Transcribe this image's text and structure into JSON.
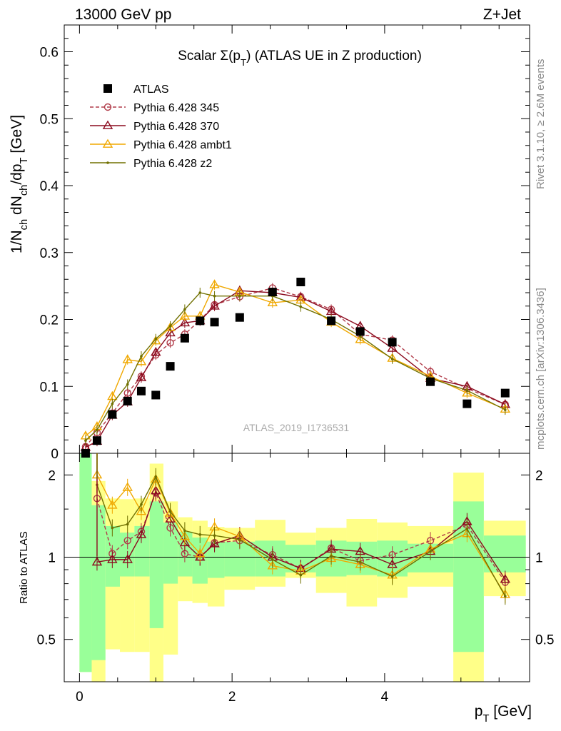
{
  "header": {
    "left": "13000 GeV pp",
    "right": "Z+Jet"
  },
  "side_labels": {
    "rivet": "Rivet 3.1.10, ≥ 2.6M events",
    "mcplots": "mcplots.cern.ch [arXiv:1306.3436]"
  },
  "chart_data": [
    {
      "type": "line",
      "title": "Scalar Σ(p_T) (ATLAS UE in Z production)",
      "xlabel": "p_T [GeV]",
      "ylabel": "1/N_ch dN_ch/dp_T [GeV]",
      "watermark": "ATLAS_2019_I1736531",
      "xlim": [
        -0.2,
        5.9
      ],
      "ylim": [
        0,
        0.64
      ],
      "yticks": [
        0,
        0.1,
        0.2,
        0.3,
        0.4,
        0.5,
        0.6
      ],
      "ytick_labels": [
        "0",
        "0.1",
        "0.2",
        "0.3",
        "0.4",
        "0.5",
        "0.6"
      ],
      "grid": false,
      "legend": "top-left",
      "x": [
        0.08,
        0.23,
        0.43,
        0.63,
        0.81,
        1.0,
        1.19,
        1.38,
        1.58,
        1.77,
        2.1,
        2.53,
        2.9,
        3.3,
        3.68,
        4.1,
        4.6,
        5.08,
        5.58
      ],
      "series": [
        {
          "name": "ATLAS",
          "color": "#000000",
          "marker": "filled-square",
          "values": [
            0.0,
            0.019,
            0.058,
            0.078,
            0.093,
            0.087,
            0.13,
            0.172,
            0.198,
            0.196,
            0.203,
            0.241,
            0.256,
            0.198,
            0.182,
            0.166,
            0.107,
            0.074,
            0.09
          ]
        },
        {
          "name": "Pythia 6.428 345",
          "color": "#b03a48",
          "marker": "open-circle",
          "dashed": true,
          "values": [
            0.01,
            0.031,
            0.06,
            0.09,
            0.115,
            0.147,
            0.165,
            0.178,
            0.199,
            0.222,
            0.234,
            0.247,
            0.234,
            0.215,
            0.178,
            0.169,
            0.122,
            0.097,
            0.073
          ]
        },
        {
          "name": "Pythia 6.428 370",
          "color": "#8b0a1e",
          "marker": "open-triangle",
          "values": [
            0.009,
            0.018,
            0.057,
            0.077,
            0.113,
            0.151,
            0.18,
            0.195,
            0.198,
            0.22,
            0.243,
            0.24,
            0.233,
            0.212,
            0.19,
            0.157,
            0.112,
            0.1,
            0.073
          ]
        },
        {
          "name": "Pythia 6.428 ambt1",
          "color": "#f0a800",
          "marker": "open-triangle",
          "values": [
            0.026,
            0.04,
            0.085,
            0.14,
            0.137,
            0.168,
            0.188,
            0.205,
            0.205,
            0.252,
            0.241,
            0.225,
            0.229,
            0.196,
            0.17,
            0.142,
            0.115,
            0.09,
            0.066
          ]
        },
        {
          "name": "Pythia 6.428 z2",
          "color": "#707000",
          "marker": "small-dot",
          "values": [
            0.019,
            0.035,
            0.074,
            0.103,
            0.145,
            0.171,
            0.19,
            0.215,
            0.24,
            0.235,
            0.235,
            0.235,
            0.219,
            0.2,
            0.175,
            0.141,
            0.112,
            0.094,
            0.065
          ]
        }
      ]
    },
    {
      "type": "line",
      "xlabel": "p_T [GeV]",
      "ylabel": "Ratio to ATLAS",
      "log_y": true,
      "ylim": [
        0.35,
        2.4
      ],
      "yticks": [
        0.5,
        1,
        2
      ],
      "ytick_labels": [
        "0.5",
        "1",
        "2"
      ],
      "xticks": [
        0,
        2,
        4
      ],
      "xtick_labels": [
        "0",
        "2",
        "4"
      ],
      "reference_line": 1,
      "uncertainty_bands": {
        "bin_edges": [
          0.0,
          0.16,
          0.34,
          0.53,
          0.72,
          0.92,
          1.1,
          1.29,
          1.48,
          1.68,
          1.9,
          2.3,
          2.7,
          3.1,
          3.5,
          3.9,
          4.3,
          4.9,
          5.3,
          5.85
        ],
        "inner_lo": [
          0.38,
          0.42,
          0.78,
          0.85,
          0.85,
          0.55,
          0.8,
          0.85,
          0.8,
          0.84,
          0.85,
          0.85,
          0.88,
          0.85,
          0.86,
          0.85,
          0.88,
          0.45,
          0.88
        ],
        "inner_hi": [
          2.4,
          1.55,
          1.3,
          1.23,
          1.3,
          1.6,
          1.34,
          1.24,
          1.18,
          1.14,
          1.14,
          1.15,
          1.11,
          1.15,
          1.14,
          1.15,
          1.12,
          1.6,
          1.2
        ],
        "outer_lo": [
          0.38,
          0.35,
          0.46,
          0.45,
          0.45,
          0.35,
          0.44,
          0.69,
          0.68,
          0.66,
          0.76,
          0.78,
          0.84,
          0.74,
          0.66,
          0.71,
          0.78,
          0.35,
          0.72
        ],
        "outer_hi": [
          2.4,
          1.9,
          1.64,
          1.63,
          1.64,
          2.2,
          1.6,
          1.4,
          1.36,
          1.29,
          1.28,
          1.37,
          1.23,
          1.28,
          1.38,
          1.34,
          1.3,
          2.04,
          1.36
        ]
      },
      "series": [
        {
          "name": "Pythia 6.428 345",
          "values": [
            null,
            1.64,
            1.03,
            1.15,
            1.24,
            1.72,
            1.28,
            1.03,
            1.0,
            1.13,
            1.15,
            1.02,
            0.91,
            1.08,
            0.97,
            1.02,
            1.15,
            1.31,
            0.81
          ]
        },
        {
          "name": "Pythia 6.428 370",
          "values": [
            null,
            0.96,
            0.98,
            0.98,
            1.21,
            1.75,
            1.38,
            1.13,
            1.0,
            1.12,
            1.2,
            1.0,
            0.91,
            1.07,
            1.05,
            0.94,
            1.05,
            1.35,
            0.83
          ]
        },
        {
          "name": "Pythia 6.428 ambt1",
          "values": [
            null,
            2.0,
            1.55,
            1.8,
            1.47,
            1.93,
            1.45,
            1.19,
            1.03,
            1.29,
            1.19,
            0.93,
            0.89,
            0.99,
            0.94,
            0.86,
            1.07,
            1.22,
            0.73
          ]
        },
        {
          "name": "Pythia 6.428 z2",
          "values": [
            null,
            1.84,
            1.28,
            1.32,
            1.56,
            1.97,
            1.47,
            1.25,
            1.21,
            1.2,
            1.16,
            0.98,
            0.86,
            1.01,
            0.96,
            0.85,
            1.05,
            1.27,
            0.72
          ]
        }
      ]
    }
  ]
}
